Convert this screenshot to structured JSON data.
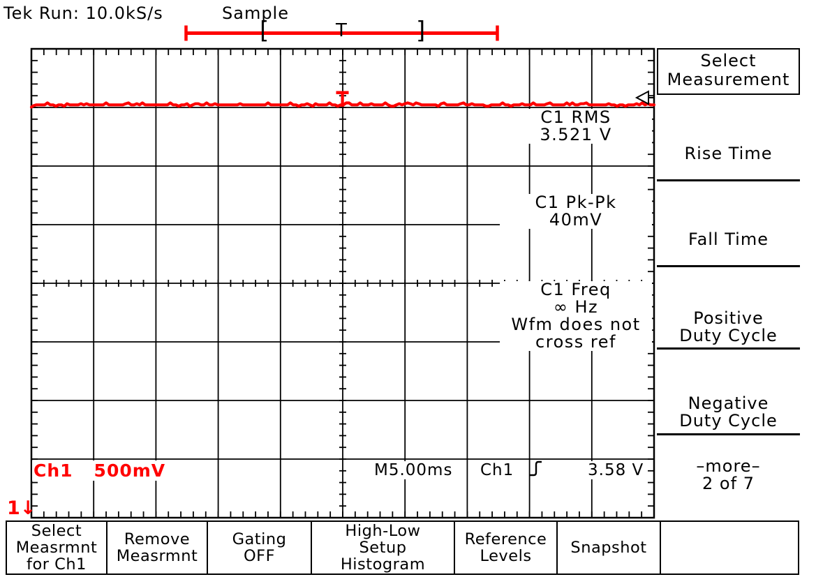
{
  "header": {
    "status": "Tek Run: 10.0kS/s",
    "mode": "Sample"
  },
  "acq_bar": {
    "start_bracket": "[",
    "trigger_mark": "T",
    "end_bracket": "]"
  },
  "measurements": [
    {
      "name": "C1 RMS",
      "value": "3.521 V"
    },
    {
      "name": "C1 Pk-Pk",
      "value": "40mV"
    },
    {
      "name": "C1 Freq",
      "value": "∞ Hz",
      "note_line1": "Wfm does not",
      "note_line2": "cross ref"
    }
  ],
  "status_bar": {
    "ch_label": "Ch1",
    "ch_scale": "500mV",
    "timebase": "M5.00ms",
    "trig_source": "Ch1",
    "trig_level": "3.58 V"
  },
  "channel_indicator": {
    "number": "1",
    "arrow": "↓"
  },
  "side_menu": {
    "title_line1": "Select",
    "title_line2": "Measurement",
    "items": [
      {
        "lines": [
          "Rise Time"
        ]
      },
      {
        "lines": [
          "Fall Time"
        ]
      },
      {
        "lines": [
          "Positive",
          "Duty Cycle"
        ]
      },
      {
        "lines": [
          "Negative",
          "Duty Cycle"
        ]
      },
      {
        "lines": [
          "–more–",
          "2 of 7"
        ]
      }
    ]
  },
  "bottom_menu": {
    "items": [
      {
        "lines": [
          "Select",
          "Measrmnt",
          "for Ch1"
        ]
      },
      {
        "lines": [
          "Remove",
          "Measrmnt"
        ]
      },
      {
        "lines": [
          "Gating",
          "OFF"
        ]
      },
      {
        "lines": [
          "High-Low",
          "Setup",
          "Histogram"
        ]
      },
      {
        "lines": [
          "Reference",
          "Levels"
        ]
      },
      {
        "lines": [
          "Snapshot"
        ]
      },
      {
        "lines": []
      }
    ]
  },
  "chart_data": {
    "type": "line",
    "title": "Ch1 waveform (flat DC level with small noise)",
    "x_axis": {
      "scale_per_div": "5.00ms",
      "divisions": 10
    },
    "y_axis": {
      "scale_per_div": "500mV",
      "divisions": 8
    },
    "series": [
      {
        "name": "Ch1",
        "shape": "flat",
        "level_volts": 3.52,
        "peak_to_peak_volts": 0.04
      }
    ],
    "trigger": {
      "source": "Ch1",
      "slope": "rising",
      "level_volts": 3.58
    }
  },
  "colors": {
    "accent_red": "#ff0000",
    "foreground": "#000000",
    "background": "#ffffff"
  }
}
